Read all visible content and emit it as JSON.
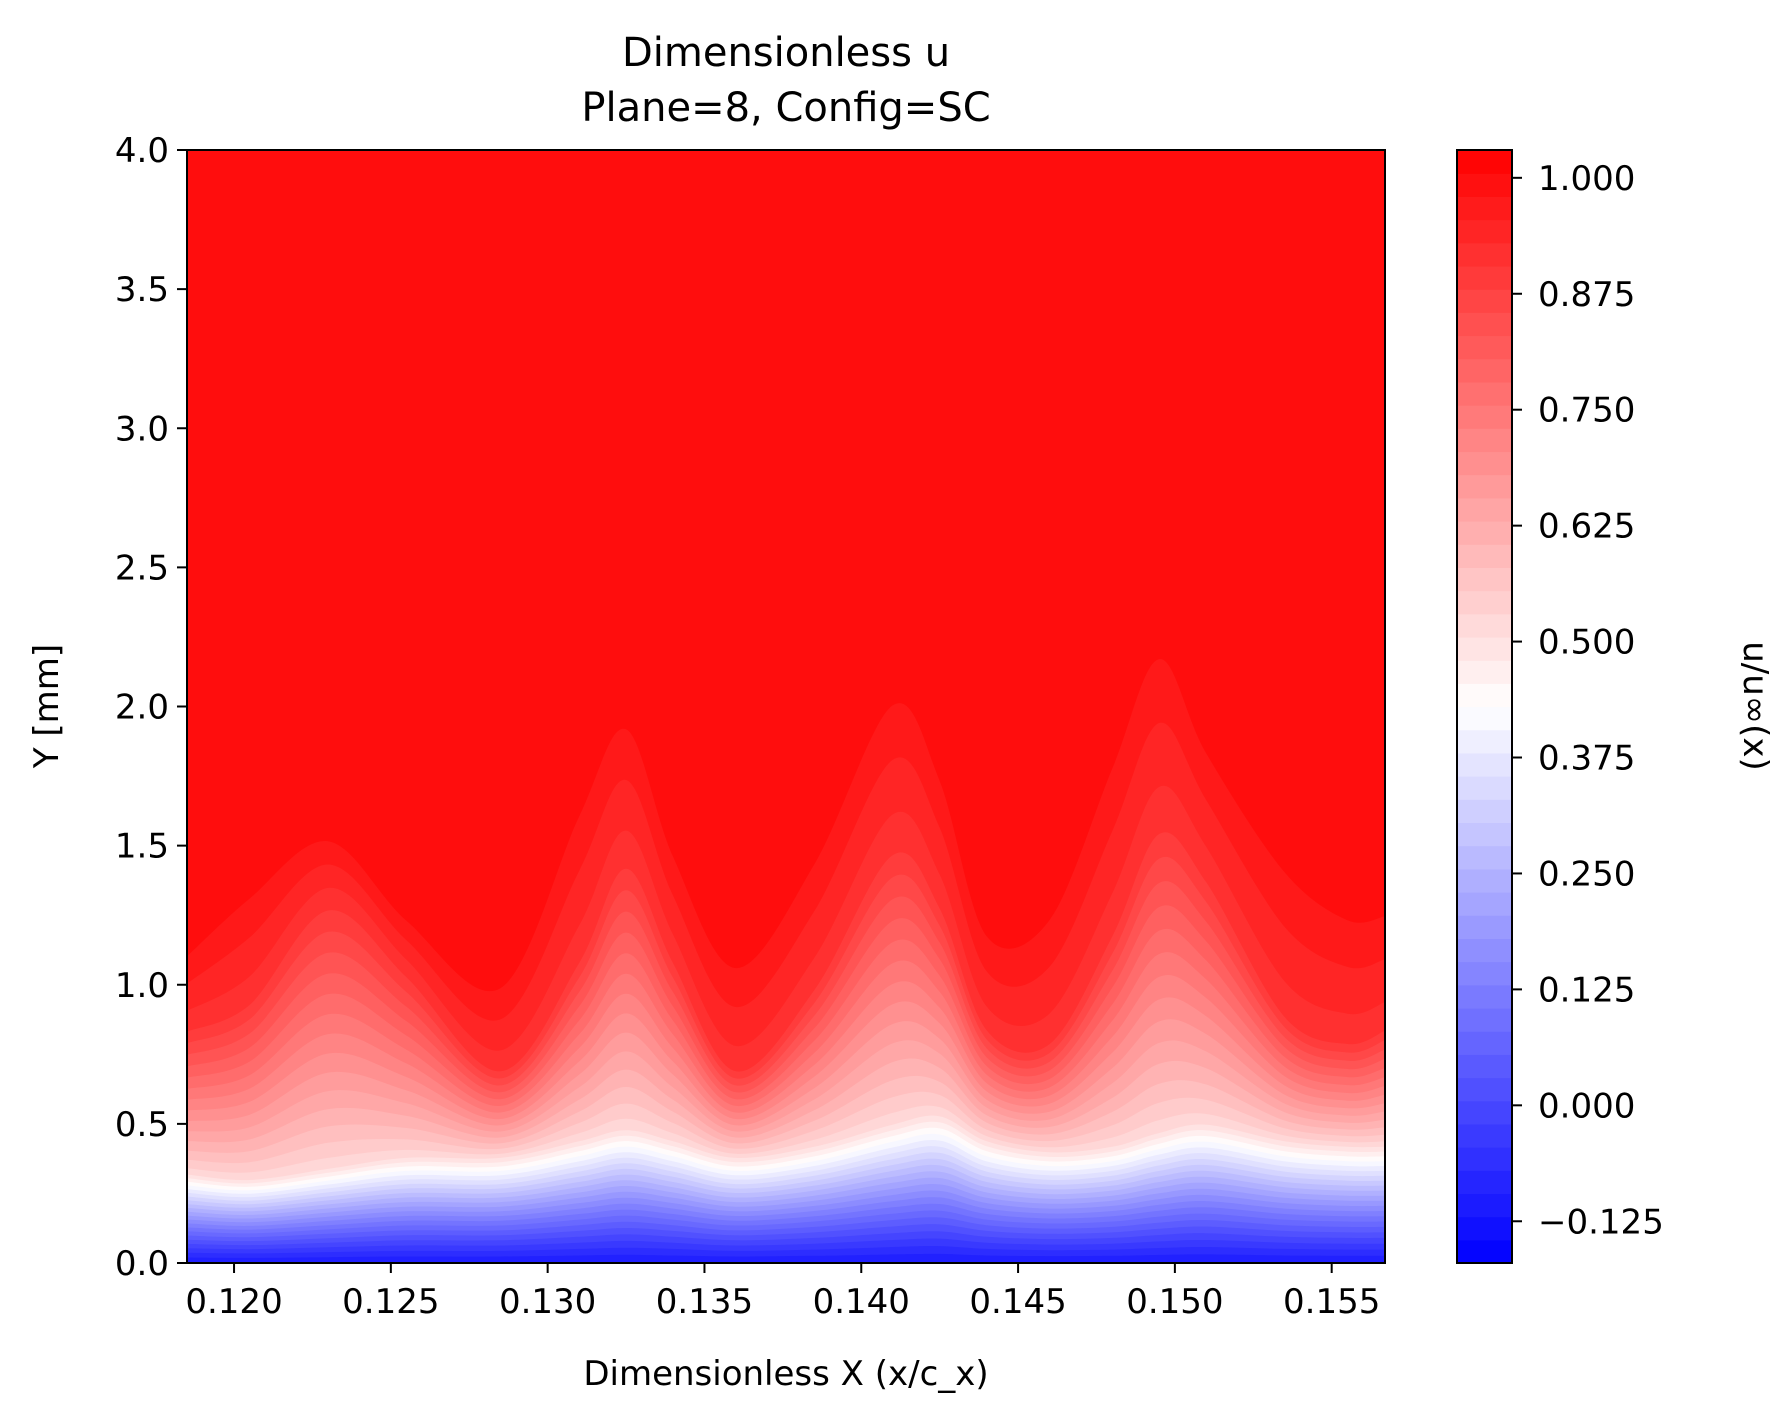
{
  "chart_data": {
    "type": "heatmap",
    "title": "Dimensionless u",
    "subtitle": "Plane=8, Config=SC",
    "xlabel": "Dimensionless X (x/c_x)",
    "ylabel": "Y [mm]",
    "xlim": [
      0.1185,
      0.1567
    ],
    "ylim": [
      0.0,
      4.0
    ],
    "x_ticks": [
      0.12,
      0.125,
      0.13,
      0.135,
      0.14,
      0.145,
      0.15,
      0.155
    ],
    "x_tick_labels": [
      "0.120",
      "0.125",
      "0.130",
      "0.135",
      "0.140",
      "0.145",
      "0.150",
      "0.155"
    ],
    "y_ticks": [
      0.0,
      0.5,
      1.0,
      1.5,
      2.0,
      2.5,
      3.0,
      3.5,
      4.0
    ],
    "y_tick_labels": [
      "0.0",
      "0.5",
      "1.0",
      "1.5",
      "2.0",
      "2.5",
      "3.0",
      "3.5",
      "4.0"
    ],
    "colorbar": {
      "label": "u/u∞(x)",
      "range": [
        -0.17,
        1.03
      ],
      "ticks": [
        1.0,
        0.875,
        0.75,
        0.625,
        0.5,
        0.375,
        0.25,
        0.125,
        0.0,
        -0.125
      ],
      "tick_labels": [
        "1.000",
        "0.875",
        "0.750",
        "0.625",
        "0.500",
        "0.375",
        "0.250",
        "0.125",
        "0.000",
        "−0.125"
      ],
      "colormap": "bwr",
      "levels": 48,
      "low_color": "#0000ff",
      "mid_color": "#ffffff",
      "high_color": "#ff0000"
    },
    "field_profile": {
      "x": [
        0.1185,
        0.1205,
        0.123,
        0.1255,
        0.1285,
        0.131,
        0.1325,
        0.134,
        0.136,
        0.1385,
        0.141,
        0.1425,
        0.144,
        0.146,
        0.148,
        0.1495,
        0.151,
        0.1535,
        0.1555,
        0.1567
      ],
      "y_half": [
        0.32,
        0.3,
        0.34,
        0.38,
        0.38,
        0.44,
        0.48,
        0.44,
        0.38,
        0.42,
        0.5,
        0.53,
        0.44,
        0.4,
        0.42,
        0.47,
        0.5,
        0.44,
        0.42,
        0.42
      ],
      "y_red": [
        0.85,
        0.95,
        1.3,
        1.05,
        0.7,
        1.1,
        1.45,
        1.1,
        0.7,
        1.0,
        1.5,
        1.3,
        0.85,
        0.8,
        1.2,
        1.58,
        1.4,
        0.9,
        0.8,
        0.85
      ],
      "full_velocity_y": [
        1.2,
        1.45,
        1.6,
        1.3,
        1.1,
        1.8,
        2.1,
        1.6,
        1.2,
        1.6,
        2.2,
        1.9,
        1.3,
        1.4,
        2.0,
        2.4,
        2.0,
        1.6,
        1.4,
        1.4
      ]
    }
  }
}
